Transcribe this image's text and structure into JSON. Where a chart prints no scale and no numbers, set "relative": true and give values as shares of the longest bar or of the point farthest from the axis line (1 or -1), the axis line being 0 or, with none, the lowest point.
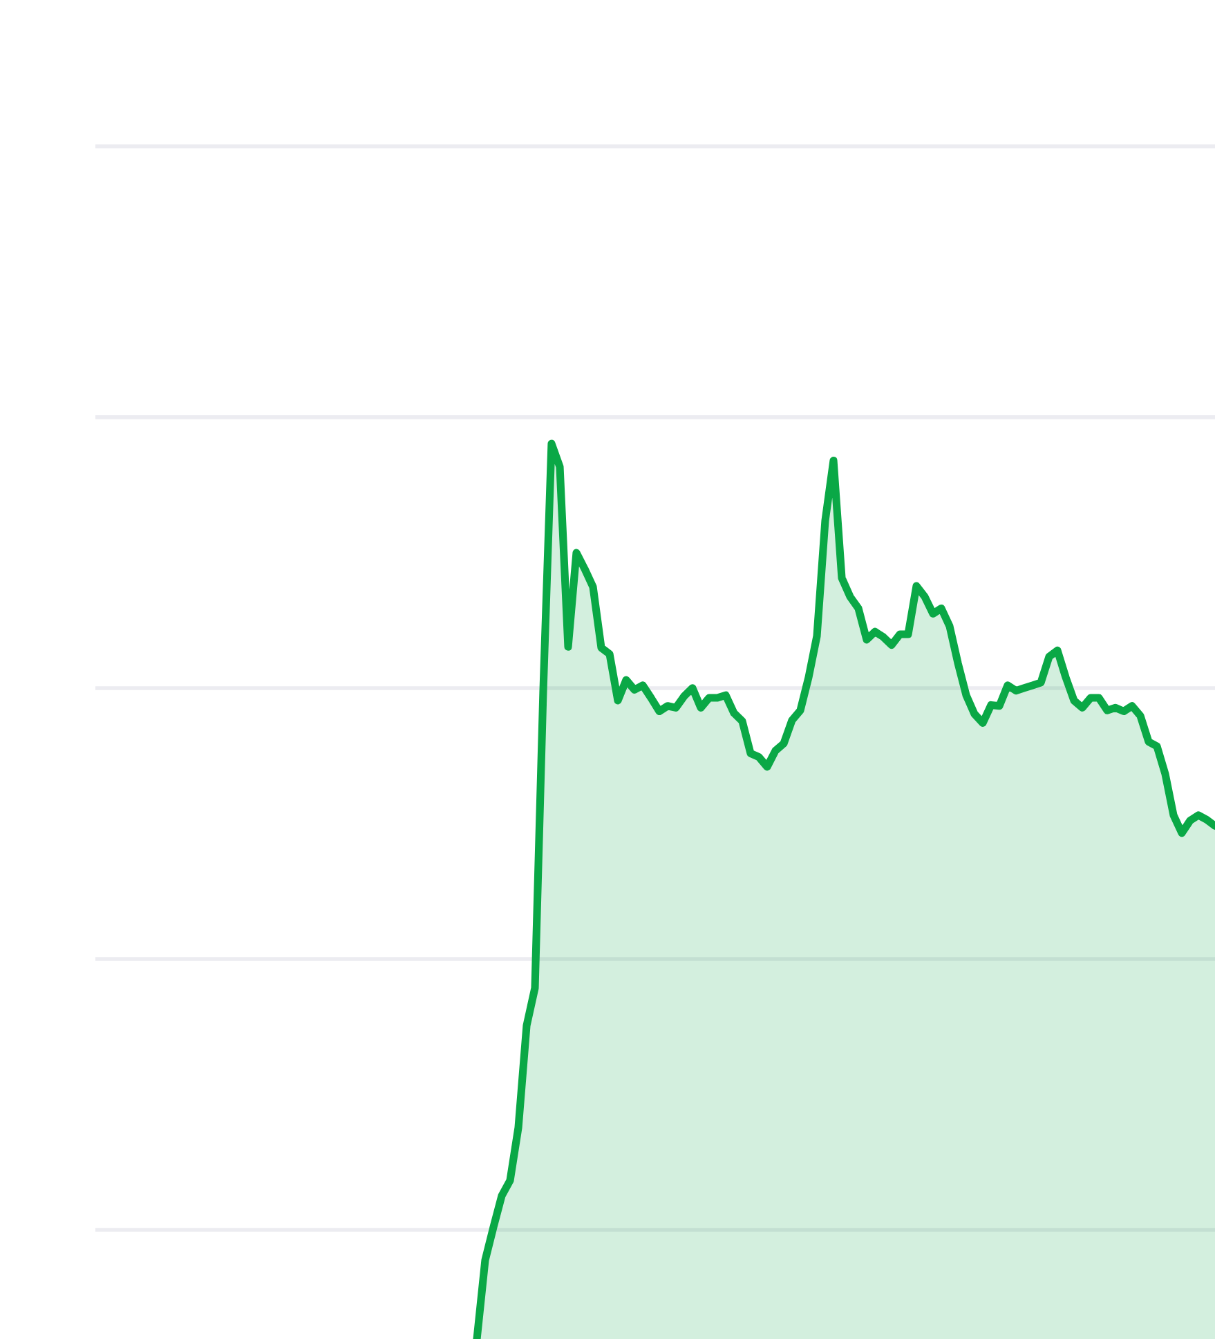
{
  "chart_data": {
    "type": "area",
    "relative": true,
    "grid": "y",
    "categories": [
      null,
      null,
      null,
      null,
      null,
      null,
      null,
      null,
      null,
      null,
      null,
      null,
      null,
      null,
      null,
      null,
      null,
      null,
      null,
      null,
      null,
      null,
      null,
      null,
      null,
      null,
      null,
      null,
      null,
      null,
      null,
      null,
      null,
      null,
      null,
      null,
      null,
      null,
      null,
      null,
      null,
      null,
      null,
      null,
      null,
      null,
      null,
      null,
      null,
      null,
      null,
      null,
      null,
      null,
      null,
      null,
      null,
      null,
      null,
      null,
      null,
      null,
      null,
      null,
      null,
      null,
      null,
      null,
      null,
      null,
      null,
      null,
      null,
      null,
      null,
      null,
      null,
      null,
      null,
      null,
      null,
      null,
      null,
      null,
      null,
      null,
      null,
      null,
      null,
      null,
      null,
      null,
      null,
      null,
      null,
      null,
      null,
      null,
      null,
      null,
      null,
      null,
      null,
      null,
      null,
      null,
      null,
      null,
      null,
      null,
      null,
      null,
      null,
      null,
      null,
      null,
      null,
      null,
      null,
      null,
      null,
      null,
      null,
      null,
      null,
      null,
      null,
      null,
      null,
      null,
      null,
      null,
      null,
      null,
      null,
      null
    ],
    "series": [
      {
        "color": "#0aa846",
        "values": [
          null,
          null,
          null,
          null,
          null,
          null,
          null,
          null,
          null,
          null,
          null,
          null,
          null,
          null,
          null,
          null,
          null,
          null,
          null,
          null,
          null,
          null,
          null,
          null,
          null,
          null,
          null,
          null,
          null,
          null,
          null,
          null,
          null,
          null,
          null,
          null,
          null,
          null,
          null,
          null,
          null,
          null,
          null,
          null,
          null,
          null,
          0,
          0.088,
          0.125,
          0.16,
          0.177,
          0.236,
          0.35,
          0.392,
          0.724,
          1,
          0.974,
          0.773,
          0.878,
          0.86,
          0.84,
          0.772,
          0.765,
          0.713,
          0.736,
          0.725,
          0.73,
          0.716,
          0.701,
          0.707,
          0.705,
          0.718,
          0.727,
          0.705,
          0.716,
          0.716,
          0.719,
          0.699,
          0.69,
          0.654,
          0.65,
          0.639,
          0.657,
          0.665,
          0.691,
          0.702,
          0.739,
          0.785,
          0.914,
          0.981,
          0.85,
          0.829,
          0.816,
          0.781,
          0.79,
          0.784,
          0.775,
          0.787,
          0.787,
          0.841,
          0.829,
          0.81,
          0.816,
          0.796,
          0.755,
          0.719,
          0.698,
          0.688,
          0.708,
          0.707,
          0.73,
          0.724,
          0.727,
          0.73,
          0.733,
          0.762,
          0.769,
          0.739,
          0.713,
          0.705,
          0.716,
          0.716,
          0.702,
          0.705,
          0.701,
          0.707,
          0.696,
          0.667,
          0.662,
          0.631,
          0.585,
          0.565,
          0.579,
          0.585,
          0.58,
          0.573
        ]
      }
    ]
  }
}
